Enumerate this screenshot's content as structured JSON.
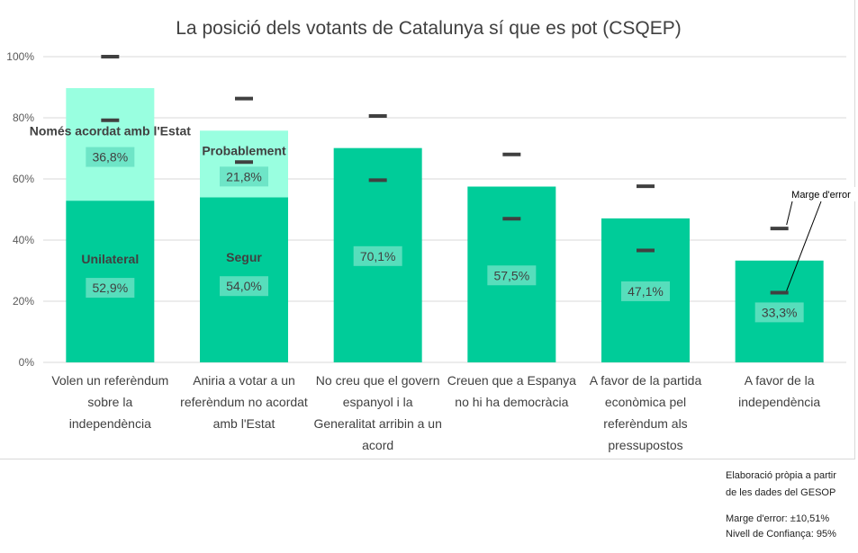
{
  "chart_data": {
    "type": "bar",
    "title": "La posició dels votants de Catalunya sí que es pot (CSQEP)",
    "ylim": [
      0,
      100
    ],
    "yticks": [
      0,
      20,
      40,
      60,
      80,
      100
    ],
    "ytick_suffix": "%",
    "grid": true,
    "categories": [
      [
        "Volen un referèndum",
        "sobre la",
        "independència"
      ],
      [
        "Aniria a votar a un",
        "referèndum no acordat",
        "amb l'Estat"
      ],
      [
        "No creu que el govern",
        "espanyol i la",
        "Generalitat arribin a un",
        "acord"
      ],
      [
        "Creuen que a Espanya",
        "no hi ha democràcia"
      ],
      [
        "A favor de la partida",
        "econòmica pel",
        "referèndum als",
        "pressupostos"
      ],
      [
        "A favor de la",
        "independència"
      ]
    ],
    "series": [
      {
        "name": "base",
        "values": [
          52.9,
          54.0,
          70.1,
          57.5,
          47.1,
          33.3
        ],
        "labels": [
          "52,9%",
          "54,0%",
          "70,1%",
          "57,5%",
          "47,1%",
          "33,3%"
        ],
        "segment_names": [
          "Unilateral",
          "Segur",
          "",
          "",
          "",
          ""
        ],
        "color": "#00cc99"
      },
      {
        "name": "addicional",
        "values": [
          36.8,
          21.8,
          0,
          0,
          0,
          0
        ],
        "labels": [
          "36,8%",
          "21,8%",
          "",
          "",
          "",
          ""
        ],
        "segment_names": [
          "Només acordat amb l'Estat",
          "Probablement",
          "",
          "",
          "",
          ""
        ],
        "color": "#99ffe0"
      }
    ],
    "error_bars": {
      "upper": [
        100,
        86.3,
        80.6,
        68.0,
        57.6,
        43.8
      ],
      "lower": [
        79.2,
        65.5,
        59.6,
        47.0,
        36.6,
        22.8
      ]
    },
    "annotation": "Marge d'error",
    "colors": {
      "base": "#00cc99",
      "addicional": "#99ffe0",
      "label_box": "#66e0c2",
      "error": "#404040",
      "grid": "#d9d9d9",
      "text": "#404040",
      "title": "#404040"
    }
  },
  "footnotes": {
    "source_line1": "Elaboració pròpia a partir",
    "source_line2": "de les dades del GESOP",
    "margin_line": "Marge   d'error:    ±10,51%",
    "confidence_line": "Nivell de Confiança: 95%"
  }
}
